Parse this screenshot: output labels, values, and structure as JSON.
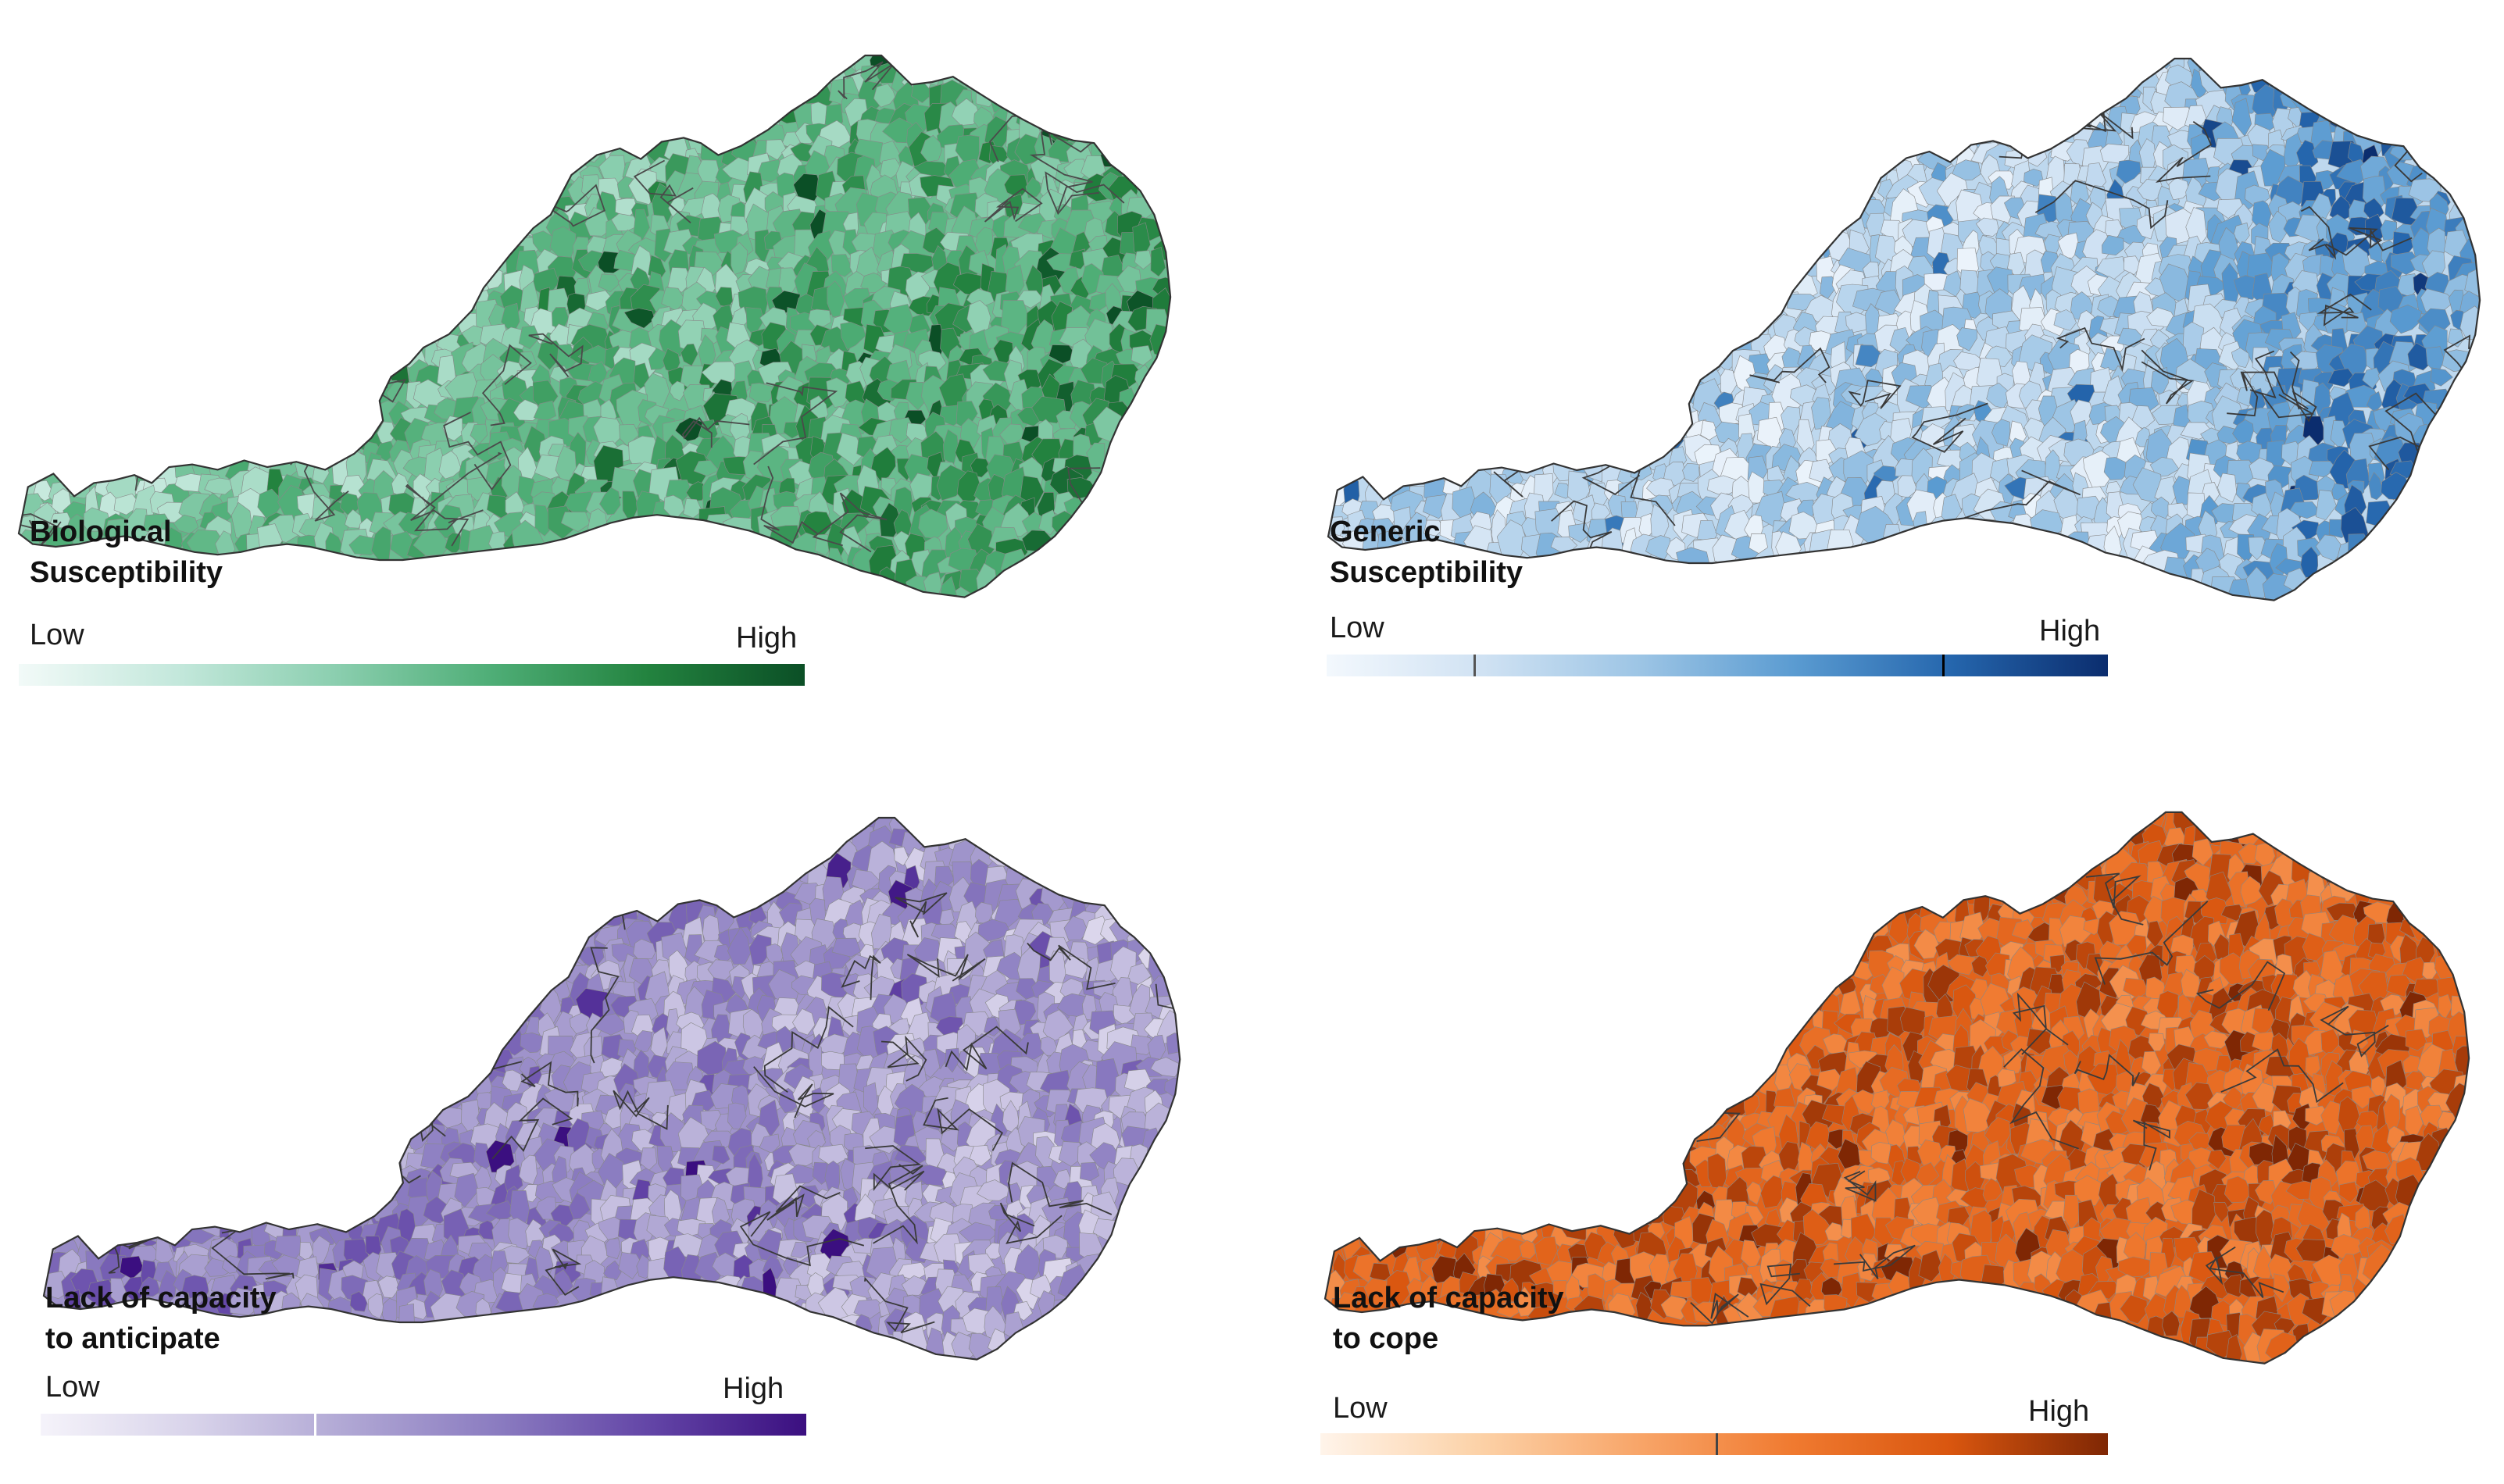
{
  "maps": [
    {
      "id": "biological",
      "title_line1": "Biological",
      "title_line2": "Susceptibility",
      "legend": {
        "low_label": "Low",
        "high_label": "High"
      },
      "color_scale": [
        "#f2faf8",
        "#c4e8dc",
        "#8ccfb0",
        "#4fae77",
        "#23833f",
        "#0b4f26"
      ],
      "border_color": "#4a4a4a"
    },
    {
      "id": "generic",
      "title_line1": "Generic",
      "title_line2": "Susceptibility",
      "legend": {
        "low_label": "Low",
        "high_label": "High"
      },
      "color_scale": [
        "#f3f8fd",
        "#d0e2f3",
        "#9dc5e5",
        "#5a9bd1",
        "#2566ad",
        "#0b2d6e"
      ],
      "border_color": "#3a3a3a"
    },
    {
      "id": "anticipate",
      "title_line1": "Lack of capacity",
      "title_line2": "to anticipate",
      "legend": {
        "low_label": "Low",
        "high_label": "High"
      },
      "color_scale": [
        "#f5f3fa",
        "#d8d3ea",
        "#b0a7d4",
        "#8a7bc0",
        "#6244a6",
        "#3b0f80"
      ],
      "border_color": "#3a3a3a"
    },
    {
      "id": "cope",
      "title_line1": "Lack of capacity",
      "title_line2": "to cope",
      "legend": {
        "low_label": "Low",
        "high_label": "High"
      },
      "color_scale": [
        "#fff4ea",
        "#fcd2a8",
        "#f8a66a",
        "#f07a30",
        "#d9560f",
        "#7f2704"
      ],
      "border_color": "#3a3a3a"
    }
  ]
}
